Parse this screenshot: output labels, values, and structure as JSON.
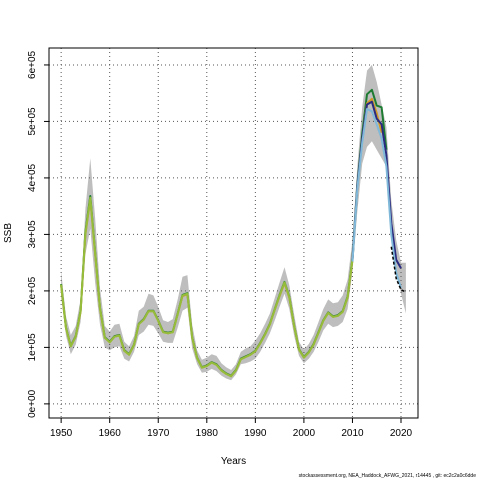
{
  "chart_data": {
    "type": "line",
    "xlabel": "Years",
    "ylabel": "SSB",
    "xlim": [
      1947.5,
      2023.5
    ],
    "ylim": [
      -25000,
      630000
    ],
    "x_ticks": [
      1950,
      1960,
      1970,
      1980,
      1990,
      2000,
      2010,
      2020
    ],
    "y_ticks": [
      0,
      100000,
      200000,
      300000,
      400000,
      500000,
      600000
    ],
    "y_tick_labels": [
      "0e+00",
      "1e+05",
      "2e+05",
      "3e+05",
      "4e+05",
      "5e+05",
      "6e+05"
    ],
    "grid": true,
    "grid_style": "dotted",
    "confidence_band": {
      "color": "#bebebe",
      "x": [
        1950,
        1951,
        1952,
        1953,
        1954,
        1955,
        1956,
        1957,
        1958,
        1959,
        1960,
        1961,
        1962,
        1963,
        1964,
        1965,
        1966,
        1967,
        1968,
        1969,
        1970,
        1971,
        1972,
        1973,
        1974,
        1975,
        1976,
        1977,
        1978,
        1979,
        1980,
        1981,
        1982,
        1983,
        1984,
        1985,
        1986,
        1987,
        1988,
        1989,
        1990,
        1991,
        1992,
        1993,
        1994,
        1995,
        1996,
        1997,
        1998,
        1999,
        2000,
        2001,
        2002,
        2003,
        2004,
        2005,
        2006,
        2007,
        2008,
        2009,
        2010,
        2011,
        2012,
        2013,
        2014,
        2015,
        2016,
        2017,
        2018,
        2019,
        2020,
        2021
      ],
      "lower": [
        190000,
        120000,
        88000,
        105000,
        145000,
        265000,
        310000,
        215000,
        140000,
        100000,
        95000,
        100000,
        102000,
        80000,
        75000,
        92000,
        122000,
        128000,
        140000,
        138000,
        125000,
        110000,
        108000,
        108000,
        135000,
        165000,
        170000,
        98000,
        70000,
        55000,
        57000,
        62000,
        58000,
        50000,
        45000,
        42000,
        52000,
        70000,
        72000,
        75000,
        80000,
        92000,
        108000,
        125000,
        148000,
        172000,
        195000,
        168000,
        120000,
        85000,
        72000,
        80000,
        92000,
        110000,
        130000,
        142000,
        136000,
        138000,
        145000,
        168000,
        235000,
        340000,
        425000,
        455000,
        465000,
        450000,
        435000,
        420000,
        310000,
        240000,
        195000,
        160000
      ],
      "upper": [
        235000,
        155000,
        122000,
        138000,
        185000,
        345000,
        435000,
        330000,
        205000,
        138000,
        128000,
        140000,
        142000,
        110000,
        102000,
        120000,
        165000,
        172000,
        195000,
        192000,
        172000,
        148000,
        145000,
        150000,
        185000,
        225000,
        228000,
        140000,
        95000,
        78000,
        82000,
        88000,
        85000,
        72000,
        65000,
        60000,
        70000,
        92000,
        98000,
        102000,
        112000,
        125000,
        142000,
        160000,
        188000,
        215000,
        242000,
        210000,
        158000,
        110000,
        96000,
        106000,
        122000,
        145000,
        168000,
        185000,
        178000,
        180000,
        192000,
        220000,
        290000,
        420000,
        525000,
        590000,
        600000,
        570000,
        530000,
        490000,
        360000,
        290000,
        250000,
        250000
      ]
    },
    "series": [
      {
        "name": "",
        "color": "#1e7c32",
        "x": [
          1950,
          1951,
          1952,
          1953,
          1954,
          1955,
          1956,
          1957,
          1958,
          1959,
          1960,
          1961,
          1962,
          1963,
          1964,
          1965,
          1966,
          1967,
          1968,
          1969,
          1970,
          1971,
          1972,
          1973,
          1974,
          1975,
          1976,
          1977,
          1978,
          1979,
          1980,
          1981,
          1982,
          1983,
          1984,
          1985,
          1986,
          1987,
          1988,
          1989,
          1990,
          1991,
          1992,
          1993,
          1994,
          1995,
          1996,
          1997,
          1998,
          1999,
          2000,
          2001,
          2002,
          2003,
          2004,
          2005,
          2006,
          2007,
          2008,
          2009,
          2010,
          2011,
          2012,
          2013,
          2014,
          2015,
          2016,
          2017
        ],
        "values": [
          212000,
          135000,
          103000,
          120000,
          165000,
          305000,
          368000,
          270000,
          170000,
          118000,
          110000,
          120000,
          122000,
          95000,
          88000,
          105000,
          142000,
          150000,
          165000,
          165000,
          148000,
          128000,
          126000,
          128000,
          160000,
          193000,
          196000,
          118000,
          82000,
          65000,
          68000,
          74000,
          70000,
          60000,
          54000,
          50000,
          60000,
          80000,
          84000,
          88000,
          94000,
          108000,
          124000,
          142000,
          168000,
          193000,
          216000,
          190000,
          138000,
          97000,
          83000,
          92000,
          106000,
          127000,
          148000,
          162000,
          155000,
          157000,
          164000,
          190000,
          258000,
          388000,
          478000,
          548000,
          556000,
          528000,
          525000,
          450000
        ]
      },
      {
        "name": "",
        "color": "#d19a28",
        "x": [
          1950,
          1951,
          1952,
          1953,
          1954,
          1955,
          1956,
          1957,
          1958,
          1959,
          1960,
          1961,
          1962,
          1963,
          1964,
          1965,
          1966,
          1967,
          1968,
          1969,
          1970,
          1971,
          1972,
          1973,
          1974,
          1975,
          1976,
          1977,
          1978,
          1979,
          1980,
          1981,
          1982,
          1983,
          1984,
          1985,
          1986,
          1987,
          1988,
          1989,
          1990,
          1991,
          1992,
          1993,
          1994,
          1995,
          1996,
          1997,
          1998,
          1999,
          2000,
          2001,
          2002,
          2003,
          2004,
          2005,
          2006,
          2007,
          2008,
          2009,
          2010,
          2011,
          2012,
          2013,
          2014,
          2015,
          2016
        ],
        "values": [
          210000,
          134000,
          102000,
          119000,
          163000,
          300000,
          362000,
          266000,
          168000,
          117000,
          109000,
          119000,
          121000,
          94000,
          87000,
          104000,
          141000,
          149000,
          164000,
          164000,
          147000,
          127000,
          125000,
          127000,
          159000,
          191000,
          194000,
          117000,
          81000,
          64000,
          67000,
          73000,
          69000,
          59000,
          53000,
          49000,
          59000,
          79000,
          83000,
          87000,
          93000,
          107000,
          123000,
          141000,
          167000,
          191000,
          214000,
          188000,
          137000,
          96000,
          82000,
          91000,
          105000,
          126000,
          147000,
          161000,
          154000,
          156000,
          163000,
          188000,
          255000,
          382000,
          468000,
          532000,
          540000,
          515000,
          480000
        ]
      },
      {
        "name": "",
        "color": "#95bd3c",
        "x": [
          1950,
          1951,
          1952,
          1953,
          1954,
          1955,
          1956,
          1957,
          1958,
          1959,
          1960,
          1961,
          1962,
          1963,
          1964,
          1965,
          1966,
          1967,
          1968,
          1969,
          1970,
          1971,
          1972,
          1973,
          1974,
          1975,
          1976,
          1977,
          1978,
          1979,
          1980,
          1981,
          1982,
          1983,
          1984,
          1985,
          1986,
          1987,
          1988,
          1989,
          1990,
          1991,
          1992,
          1993,
          1994,
          1995,
          1996,
          1997,
          1998,
          1999,
          2000,
          2001,
          2002,
          2003,
          2004,
          2005,
          2006,
          2007,
          2008,
          2009,
          2010
        ],
        "values": [
          211000,
          134000,
          102000,
          119000,
          164000,
          302000,
          365000,
          268000,
          169000,
          117000,
          109000,
          119000,
          121000,
          94000,
          87000,
          104000,
          141000,
          149000,
          164000,
          164000,
          147000,
          127000,
          125000,
          127000,
          159000,
          192000,
          195000,
          117000,
          81000,
          64000,
          67000,
          73000,
          69000,
          59000,
          53000,
          49000,
          59000,
          79000,
          83000,
          87000,
          93000,
          107000,
          123000,
          141000,
          167000,
          192000,
          215000,
          189000,
          137000,
          96000,
          82000,
          91000,
          105000,
          126000,
          147000,
          161000,
          154000,
          156000,
          163000,
          189000,
          256000
        ]
      },
      {
        "name": "",
        "color": "#2a2a80",
        "x": [
          2010,
          2011,
          2012,
          2013,
          2014,
          2015,
          2016,
          2017,
          2018,
          2019,
          2020
        ],
        "values": [
          255000,
          385000,
          470000,
          530000,
          535000,
          505000,
          495000,
          440000,
          320000,
          255000,
          240000
        ]
      },
      {
        "name": "",
        "color": "#7fb8d8",
        "x": [
          2010,
          2011,
          2012,
          2013,
          2014,
          2015,
          2016,
          2017,
          2018,
          2019,
          2020
        ],
        "values": [
          252000,
          380000,
          462000,
          522000,
          518000,
          495000,
          470000,
          420000,
          300000,
          232000,
          205000
        ]
      },
      {
        "name": "",
        "color": "#000000",
        "x": [
          2018,
          2019,
          2020,
          2021
        ],
        "values": [
          278000,
          222000,
          202000,
          198000
        ],
        "dashed": true
      }
    ]
  },
  "footer_text": "stockassessment.org,  NEA_Haddock_AFWG_2021,  r14445 ,  git:  ec2c2a0c6dde"
}
